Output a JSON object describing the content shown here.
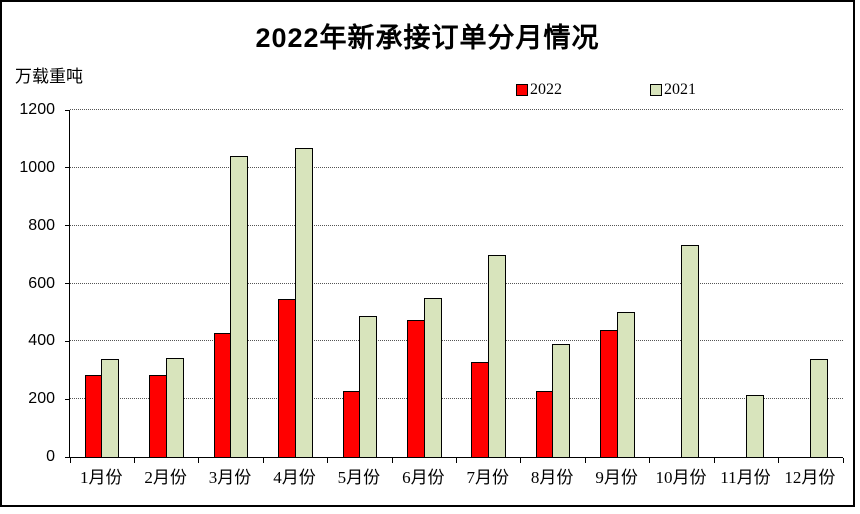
{
  "title": "2022年新承接订单分月情况",
  "unit_label": "万载重吨",
  "legend": [
    {
      "label": "2022",
      "color": "#FF0000"
    },
    {
      "label": "2021",
      "color": "#D8E4BC"
    }
  ],
  "colors": {
    "bar_2022": "#FF0000",
    "bar_2021": "#D8E4BC",
    "bar_outline": "#000000",
    "gridline": "#555555"
  },
  "y_axis": {
    "ticks": [
      0,
      200,
      400,
      600,
      800,
      1000,
      1200
    ],
    "max": 1200
  },
  "chart_data": {
    "type": "bar",
    "title": "2022年新承接订单分月情况",
    "ylabel": "万载重吨",
    "ylim": [
      0,
      1200
    ],
    "grid": true,
    "legend_position": "top",
    "categories": [
      "1月份",
      "2月份",
      "3月份",
      "4月份",
      "5月份",
      "6月份",
      "7月份",
      "8月份",
      "9月份",
      "10月份",
      "11月份",
      "12月份"
    ],
    "series": [
      {
        "name": "2022",
        "color": "#FF0000",
        "values": [
          283,
          285,
          430,
          548,
          228,
          475,
          327,
          230,
          440,
          null,
          null,
          null
        ]
      },
      {
        "name": "2021",
        "color": "#D8E4BC",
        "values": [
          340,
          343,
          1040,
          1068,
          488,
          550,
          700,
          390,
          503,
          732,
          216,
          340
        ]
      }
    ]
  }
}
